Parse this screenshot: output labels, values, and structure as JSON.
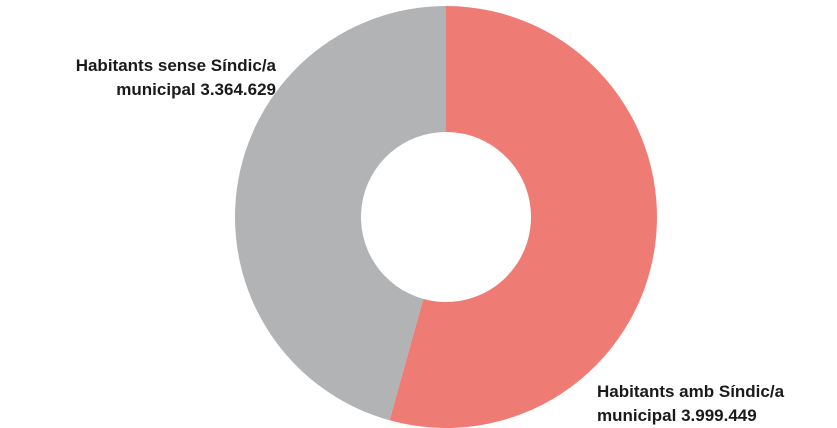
{
  "chart_data": {
    "type": "pie",
    "style": "donut",
    "categories": [
      "Habitants amb Síndic/a municipal",
      "Habitants sense Síndic/a municipal"
    ],
    "values": [
      3999449,
      3364629
    ],
    "colors": [
      "#ef7b75",
      "#b2b3b5"
    ],
    "title": "",
    "legend": "none",
    "labels": [
      {
        "line1": "Habitants amb Síndic/a",
        "line2": "municipal 3.999.449"
      },
      {
        "line1": "Habitants sense Síndic/a",
        "line2": "municipal 3.364.629"
      }
    ]
  }
}
